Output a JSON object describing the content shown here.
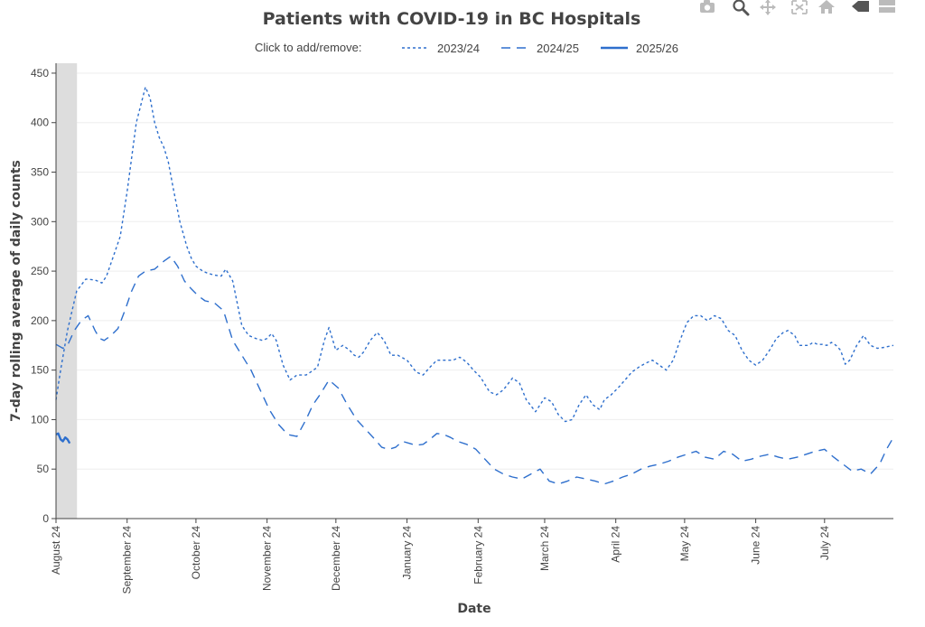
{
  "modebar": {
    "buttons": [
      {
        "name": "camera-icon",
        "label": "Download plot as png"
      },
      {
        "name": "zoom-icon",
        "label": "Zoom"
      },
      {
        "name": "pan-icon",
        "label": "Pan"
      },
      {
        "name": "autoscale-icon",
        "label": "Autoscale"
      },
      {
        "name": "home-icon",
        "label": "Reset axes"
      },
      {
        "name": "spike-icon",
        "label": "Toggle spike lines"
      },
      {
        "name": "hover-compare-icon",
        "label": "Compare data on hover"
      }
    ]
  },
  "colors": {
    "series": "#2e6fcd",
    "shade": "#dddddd",
    "grid": "#eeeeee",
    "text": "#444444"
  },
  "chart_data": {
    "type": "line",
    "title": "Patients with COVID-19 in BC Hospitals",
    "legend_title": "Click to add/remove:",
    "legend_position": "top",
    "xlabel": "Date",
    "ylabel": "7-day rolling average of daily counts",
    "ylim": [
      0,
      460
    ],
    "yticks": [
      0,
      50,
      100,
      150,
      200,
      250,
      300,
      350,
      400,
      450
    ],
    "xlim": [
      1,
      366
    ],
    "x_tick_values": [
      1,
      32,
      62,
      93,
      123,
      154,
      185,
      214,
      245,
      275,
      306,
      336
    ],
    "x_tick_labels": [
      "August 24",
      "September 24",
      "October 24",
      "November 24",
      "December 24",
      "January 24",
      "February 24",
      "March 24",
      "April 24",
      "May 24",
      "June 24",
      "July 24"
    ],
    "grid": true,
    "shaded_region": [
      1,
      7
    ],
    "series": [
      {
        "name": "2023/24",
        "dash": "dot",
        "x": [
          1,
          3,
          6,
          10,
          14,
          18,
          21,
          23,
          26,
          29,
          32,
          36,
          40,
          42,
          44,
          46,
          48,
          50,
          52,
          55,
          58,
          60,
          62,
          65,
          67,
          70,
          73,
          75,
          78,
          82,
          85,
          88,
          91,
          93,
          95,
          97,
          100,
          103,
          106,
          110,
          112,
          115,
          118,
          120,
          123,
          126,
          129,
          131,
          133,
          135,
          138,
          141,
          144,
          147,
          150,
          154,
          158,
          161,
          164,
          167,
          170,
          174,
          177,
          180,
          183,
          186,
          190,
          193,
          196,
          200,
          203,
          206,
          210,
          214,
          217,
          220,
          223,
          226,
          229,
          232,
          235,
          238,
          240,
          243,
          246,
          249,
          252,
          255,
          258,
          261,
          264,
          267,
          270,
          273,
          276,
          279,
          282,
          285,
          288,
          291,
          294,
          297,
          300,
          303,
          306,
          309,
          312,
          315,
          318,
          320,
          323,
          325,
          327,
          329,
          331,
          333,
          335,
          337,
          339,
          341,
          343,
          345,
          347,
          350,
          353,
          356,
          359,
          362,
          366
        ],
        "y": [
          120,
          150,
          190,
          230,
          242,
          241,
          238,
          245,
          265,
          285,
          330,
          400,
          436,
          425,
          400,
          385,
          375,
          360,
          335,
          300,
          275,
          263,
          255,
          250,
          248,
          246,
          245,
          252,
          240,
          195,
          185,
          182,
          180,
          182,
          187,
          180,
          155,
          140,
          145,
          145,
          148,
          153,
          180,
          193,
          170,
          175,
          170,
          165,
          163,
          168,
          180,
          188,
          180,
          165,
          165,
          160,
          148,
          145,
          153,
          160,
          160,
          160,
          163,
          158,
          150,
          143,
          128,
          125,
          130,
          142,
          137,
          120,
          108,
          122,
          118,
          105,
          98,
          100,
          115,
          125,
          115,
          110,
          120,
          125,
          132,
          140,
          148,
          153,
          157,
          160,
          155,
          150,
          160,
          180,
          198,
          205,
          205,
          200,
          205,
          202,
          190,
          185,
          170,
          160,
          155,
          160,
          170,
          182,
          188,
          190,
          185,
          175,
          175,
          175,
          178,
          176,
          176,
          175,
          178,
          175,
          170,
          156,
          160,
          175,
          185,
          175,
          172,
          173,
          175
        ]
      },
      {
        "name": "2024/25",
        "dash": "dash",
        "x": [
          1,
          4,
          6,
          9,
          12,
          15,
          18,
          20,
          22,
          25,
          28,
          31,
          34,
          37,
          40,
          44,
          48,
          51,
          54,
          57,
          60,
          63,
          66,
          70,
          74,
          78,
          82,
          86,
          90,
          94,
          98,
          102,
          106,
          110,
          113,
          116,
          120,
          124,
          128,
          132,
          136,
          140,
          143,
          146,
          149,
          152,
          155,
          158,
          161,
          164,
          167,
          170,
          173,
          176,
          180,
          184,
          188,
          192,
          196,
          200,
          204,
          208,
          212,
          216,
          220,
          224,
          228,
          232,
          236,
          240,
          244,
          248,
          252,
          256,
          260,
          264,
          268,
          272,
          276,
          280,
          284,
          288,
          292,
          296,
          300,
          304,
          308,
          312,
          316,
          320,
          324,
          328,
          332,
          336,
          340,
          344,
          348,
          352,
          356,
          360,
          363,
          366
        ],
        "y": [
          176,
          172,
          175,
          190,
          200,
          205,
          190,
          182,
          180,
          185,
          192,
          210,
          230,
          245,
          250,
          252,
          260,
          265,
          255,
          240,
          232,
          225,
          220,
          218,
          210,
          180,
          165,
          150,
          130,
          110,
          95,
          85,
          83,
          100,
          115,
          125,
          140,
          132,
          115,
          100,
          90,
          80,
          72,
          70,
          72,
          78,
          76,
          74,
          75,
          80,
          86,
          85,
          82,
          78,
          75,
          70,
          60,
          50,
          45,
          42,
          40,
          45,
          50,
          38,
          35,
          38,
          42,
          40,
          38,
          35,
          38,
          42,
          45,
          50,
          53,
          55,
          58,
          62,
          65,
          68,
          62,
          60,
          68,
          65,
          58,
          60,
          63,
          65,
          62,
          60,
          62,
          65,
          68,
          70,
          62,
          55,
          48,
          50,
          45,
          55,
          70,
          82
        ]
      },
      {
        "name": "2025/26",
        "dash": "solid",
        "x": [
          1,
          2,
          3,
          4,
          5,
          6,
          7
        ],
        "y": [
          85,
          86,
          80,
          78,
          82,
          80,
          76
        ]
      }
    ]
  }
}
